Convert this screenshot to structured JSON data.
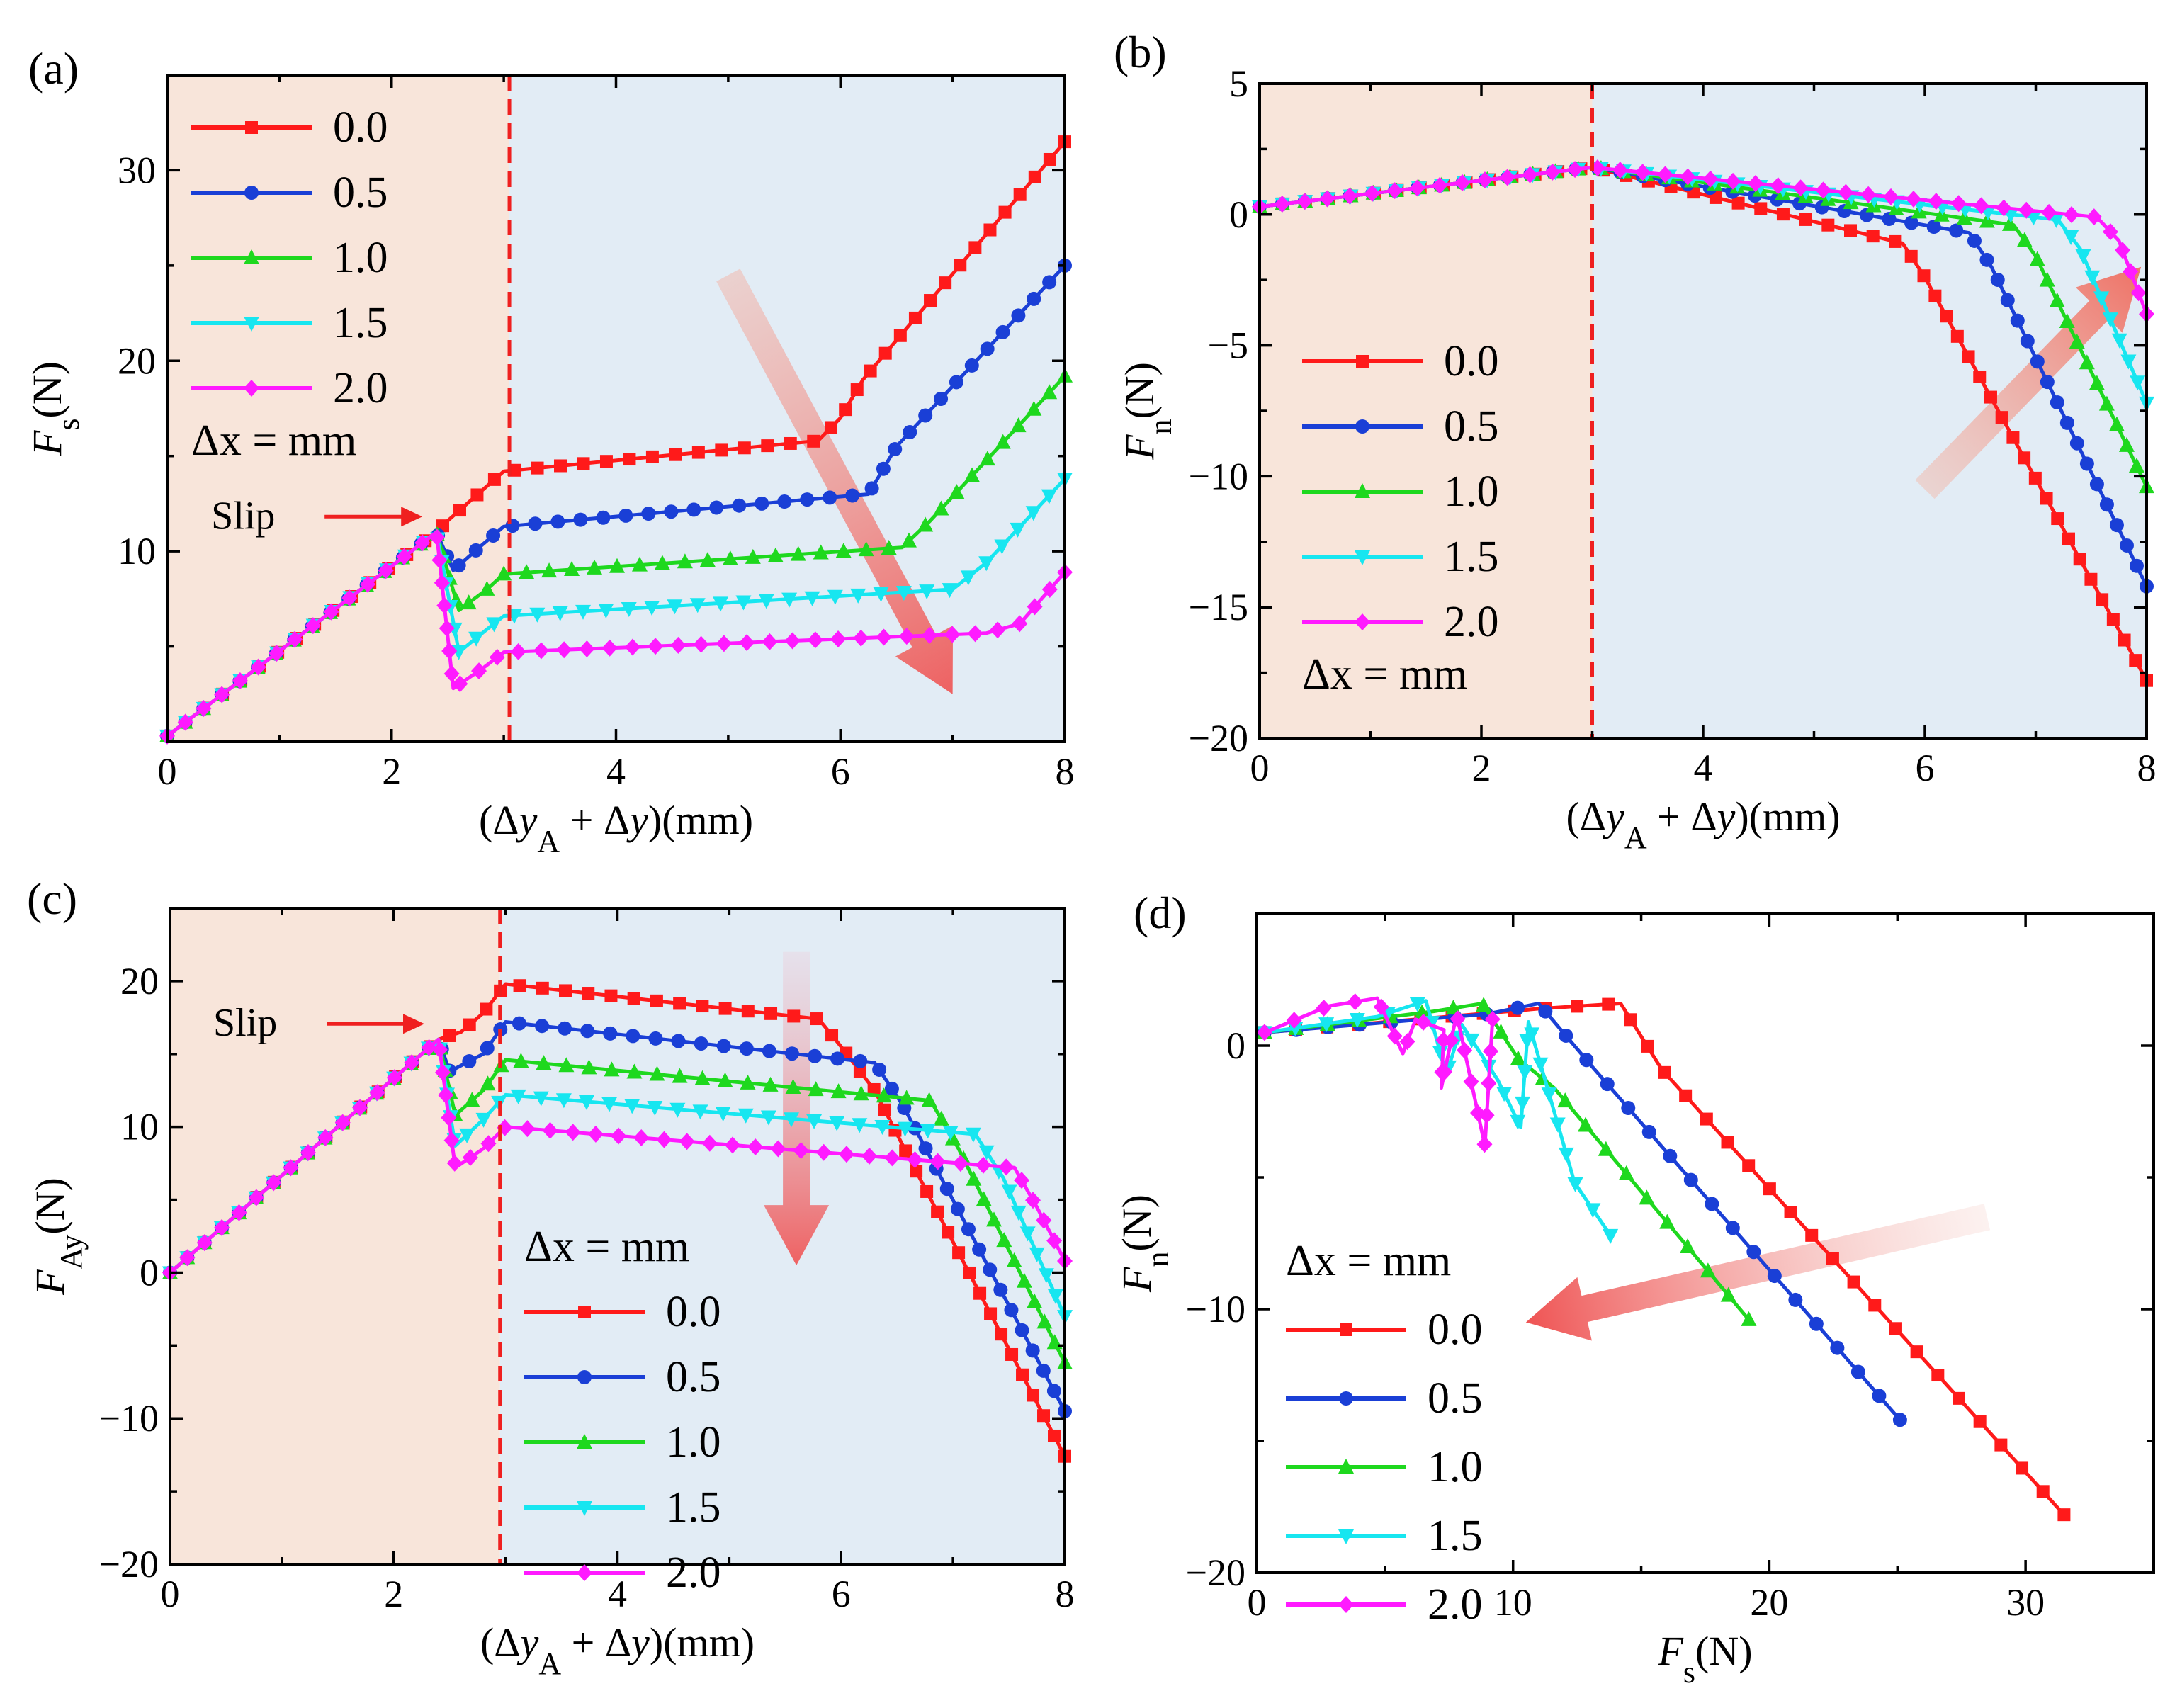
{
  "chart_data": [
    {
      "id": "a",
      "type": "line",
      "panel_label": "(a)",
      "xlabel": "(Δy_A + Δy)(mm)",
      "ylabel": "F_s(N)",
      "xlim": [
        0,
        8
      ],
      "ylim": [
        0,
        35
      ],
      "xticks": [
        0,
        2,
        4,
        6,
        8
      ],
      "yticks": [
        10,
        20,
        30
      ],
      "regions": [
        {
          "from": 0,
          "to": 3.05,
          "color": "#f8e5da"
        },
        {
          "from": 3.05,
          "to": 8,
          "color": "#e2ecf5"
        }
      ],
      "vline": 3.05,
      "legend_title": "Δx = mm",
      "legend_position": "top-left",
      "annotation": {
        "text": "Slip",
        "x": 2.35,
        "y": 11
      },
      "arrow": {
        "from": [
          5.0,
          24.5
        ],
        "to": [
          7.0,
          2.5
        ],
        "direction": "down-right"
      },
      "series": [
        {
          "name": "0.0",
          "color": "#ff1a1a",
          "marker": "square",
          "points": [
            [
              0,
              0.3
            ],
            [
              2.4,
              11
            ],
            [
              2.5,
              11.6
            ],
            [
              2.75,
              12.9
            ],
            [
              3.0,
              14.2
            ],
            [
              5.8,
              15.8
            ],
            [
              6.0,
              17
            ],
            [
              6.2,
              19
            ],
            [
              8,
              31.5
            ]
          ]
        },
        {
          "name": "0.5",
          "color": "#1a3fd6",
          "marker": "circle",
          "points": [
            [
              0,
              0.3
            ],
            [
              2.4,
              11
            ],
            [
              2.55,
              9
            ],
            [
              2.8,
              10.3
            ],
            [
              3.0,
              11.3
            ],
            [
              6.25,
              13
            ],
            [
              6.5,
              15.5
            ],
            [
              8,
              25
            ]
          ]
        },
        {
          "name": "1.0",
          "color": "#1ed81e",
          "marker": "triangle-up",
          "points": [
            [
              0,
              0.3
            ],
            [
              2.4,
              11
            ],
            [
              2.6,
              6.9
            ],
            [
              2.85,
              8.0
            ],
            [
              3.0,
              8.8
            ],
            [
              6.55,
              10.2
            ],
            [
              6.8,
              11.6
            ],
            [
              8,
              19.2
            ]
          ]
        },
        {
          "name": "1.5",
          "color": "#17e6f0",
          "marker": "triangle-down",
          "points": [
            [
              0,
              0.3
            ],
            [
              2.4,
              11
            ],
            [
              2.6,
              4.7
            ],
            [
              2.85,
              5.9
            ],
            [
              3.0,
              6.6
            ],
            [
              7.0,
              8.0
            ],
            [
              7.3,
              9.4
            ],
            [
              8,
              13.8
            ]
          ]
        },
        {
          "name": "2.0",
          "color": "#ff1aff",
          "marker": "diamond",
          "points": [
            [
              0,
              0.3
            ],
            [
              2.4,
              11
            ],
            [
              2.55,
              2.8
            ],
            [
              2.8,
              3.8
            ],
            [
              3.0,
              4.7
            ],
            [
              7.3,
              5.7
            ],
            [
              7.6,
              6.2
            ],
            [
              8,
              8.9
            ]
          ]
        }
      ]
    },
    {
      "id": "b",
      "type": "line",
      "panel_label": "(b)",
      "xlabel": "(Δy_A + Δy)(mm)",
      "ylabel": "F_n(N)",
      "xlim": [
        0,
        8
      ],
      "ylim": [
        -20,
        5
      ],
      "xticks": [
        0,
        2,
        4,
        6,
        8
      ],
      "yticks": [
        5,
        0,
        -5,
        -10,
        -15,
        -20
      ],
      "regions": [
        {
          "from": 0,
          "to": 3.0,
          "color": "#f8e5da"
        },
        {
          "from": 3.0,
          "to": 8,
          "color": "#e2ecf5"
        }
      ],
      "vline": 3.0,
      "legend_title": "Δx = mm",
      "legend_position": "bottom-left",
      "arrow": {
        "from": [
          6.0,
          -10.5
        ],
        "to": [
          7.95,
          -2.0
        ],
        "direction": "up-right"
      },
      "series": [
        {
          "name": "0.0",
          "color": "#ff1a1a",
          "marker": "square",
          "points": [
            [
              0,
              0.3
            ],
            [
              3.0,
              1.8
            ],
            [
              5.8,
              -1.1
            ],
            [
              6.0,
              -2.4
            ],
            [
              8,
              -17.8
            ]
          ]
        },
        {
          "name": "0.5",
          "color": "#1a3fd6",
          "marker": "circle",
          "points": [
            [
              0,
              0.3
            ],
            [
              3.0,
              1.8
            ],
            [
              6.4,
              -0.7
            ],
            [
              6.6,
              -2.0
            ],
            [
              8,
              -14.2
            ]
          ]
        },
        {
          "name": "1.0",
          "color": "#1ed81e",
          "marker": "triangle-up",
          "points": [
            [
              0,
              0.3
            ],
            [
              3.0,
              1.8
            ],
            [
              6.8,
              -0.4
            ],
            [
              7.0,
              -1.6
            ],
            [
              8,
              -10.4
            ]
          ]
        },
        {
          "name": "1.5",
          "color": "#17e6f0",
          "marker": "triangle-down",
          "points": [
            [
              0,
              0.3
            ],
            [
              3.0,
              1.8
            ],
            [
              7.2,
              -0.2
            ],
            [
              7.4,
              -1.3
            ],
            [
              8,
              -7.2
            ]
          ]
        },
        {
          "name": "2.0",
          "color": "#ff1aff",
          "marker": "diamond",
          "points": [
            [
              0,
              0.3
            ],
            [
              3.0,
              1.8
            ],
            [
              7.55,
              -0.1
            ],
            [
              7.75,
              -1.0
            ],
            [
              8,
              -3.8
            ]
          ]
        }
      ]
    },
    {
      "id": "c",
      "type": "line",
      "panel_label": "(c)",
      "xlabel": "(Δy_A + Δy)(mm)",
      "ylabel": "F_Ay(N)",
      "xlim": [
        0,
        8
      ],
      "ylim": [
        -20,
        25
      ],
      "xticks": [
        0,
        2,
        4,
        6,
        8
      ],
      "yticks": [
        20,
        10,
        0,
        -10,
        -20
      ],
      "regions": [
        {
          "from": 0,
          "to": 2.95,
          "color": "#f8e5da"
        },
        {
          "from": 2.95,
          "to": 8,
          "color": "#e2ecf5"
        }
      ],
      "vline": 2.95,
      "legend_title": "Δx = mm",
      "legend_position": "center-right",
      "annotation": {
        "text": "Slip",
        "x": 2.35,
        "y": 16
      },
      "arrow": {
        "from": [
          5.6,
          22
        ],
        "to": [
          5.6,
          0.5
        ],
        "direction": "down"
      },
      "series": [
        {
          "name": "0.0",
          "color": "#ff1a1a",
          "marker": "square",
          "points": [
            [
              0,
              0
            ],
            [
              2.4,
              16
            ],
            [
              2.6,
              16.5
            ],
            [
              2.8,
              17.8
            ],
            [
              3.0,
              19.8
            ],
            [
              5.8,
              17.4
            ],
            [
              6.0,
              15.5
            ],
            [
              6.3,
              12.5
            ],
            [
              6.6,
              8
            ],
            [
              8,
              -12.6
            ]
          ]
        },
        {
          "name": "0.5",
          "color": "#1a3fd6",
          "marker": "circle",
          "points": [
            [
              0,
              0
            ],
            [
              2.4,
              16
            ],
            [
              2.5,
              13.8
            ],
            [
              2.8,
              15.0
            ],
            [
              3.0,
              17.2
            ],
            [
              6.3,
              14.4
            ],
            [
              6.55,
              11.5
            ],
            [
              8,
              -9.5
            ]
          ]
        },
        {
          "name": "1.0",
          "color": "#1ed81e",
          "marker": "triangle-up",
          "points": [
            [
              0,
              0
            ],
            [
              2.4,
              16
            ],
            [
              2.55,
              10.8
            ],
            [
              2.8,
              12.5
            ],
            [
              3.0,
              14.6
            ],
            [
              6.8,
              11.8
            ],
            [
              7.05,
              8.5
            ],
            [
              8,
              -6.2
            ]
          ]
        },
        {
          "name": "1.5",
          "color": "#17e6f0",
          "marker": "triangle-down",
          "points": [
            [
              0,
              0
            ],
            [
              2.4,
              16
            ],
            [
              2.55,
              8.7
            ],
            [
              2.8,
              10.5
            ],
            [
              3.0,
              12.2
            ],
            [
              7.2,
              9.5
            ],
            [
              7.45,
              6.5
            ],
            [
              8,
              -3.0
            ]
          ]
        },
        {
          "name": "2.0",
          "color": "#ff1aff",
          "marker": "diamond",
          "points": [
            [
              0,
              0
            ],
            [
              2.4,
              16
            ],
            [
              2.55,
              7.2
            ],
            [
              2.8,
              8.5
            ],
            [
              3.0,
              10.0
            ],
            [
              7.55,
              7.2
            ],
            [
              7.75,
              4.5
            ],
            [
              8,
              0.8
            ]
          ]
        }
      ]
    },
    {
      "id": "d",
      "type": "line",
      "panel_label": "(d)",
      "xlabel": "F_s(N)",
      "ylabel": "F_n(N)",
      "xlim": [
        0,
        35
      ],
      "ylim": [
        -20,
        5
      ],
      "xticks": [
        0,
        10,
        20,
        30
      ],
      "yticks": [
        0,
        -10,
        -20
      ],
      "legend_title": "Δx = mm",
      "legend_position": "bottom-left",
      "arrow": {
        "from": [
          28.5,
          -6.5
        ],
        "to": [
          10.5,
          -10.5
        ],
        "direction": "left"
      },
      "series": [
        {
          "name": "0.0",
          "color": "#ff1a1a",
          "marker": "square",
          "points": [
            [
              0.3,
              0.5
            ],
            [
              11,
              1.4
            ],
            [
              14.2,
              1.6
            ],
            [
              15.8,
              -0.9
            ],
            [
              31.5,
              -17.8
            ]
          ]
        },
        {
          "name": "0.5",
          "color": "#1a3fd6",
          "marker": "circle",
          "points": [
            [
              0.3,
              0.5
            ],
            [
              9,
              1.2
            ],
            [
              11,
              1.6
            ],
            [
              13,
              -0.7
            ],
            [
              25.1,
              -14.2
            ]
          ]
        },
        {
          "name": "1.0",
          "color": "#1ed81e",
          "marker": "triangle-up",
          "points": [
            [
              0.3,
              0.5
            ],
            [
              6.9,
              1.3
            ],
            [
              8.8,
              1.6
            ],
            [
              10.2,
              -0.5
            ],
            [
              11.6,
              -1.6
            ],
            [
              19.2,
              -10.4
            ]
          ]
        },
        {
          "name": "1.5",
          "color": "#17e6f0",
          "marker": "triangle-down",
          "points": [
            [
              0.3,
              0.5
            ],
            [
              4.7,
              1.1
            ],
            [
              6.6,
              1.7
            ],
            [
              7.4,
              -1.1
            ],
            [
              8.0,
              0.8
            ],
            [
              9.4,
              -1.3
            ],
            [
              10.3,
              -3.1
            ],
            [
              10.6,
              0.9
            ],
            [
              12.4,
              -5.2
            ],
            [
              13.8,
              -7.2
            ]
          ]
        },
        {
          "name": "2.0",
          "color": "#ff1aff",
          "marker": "diamond",
          "points": [
            [
              0.3,
              0.5
            ],
            [
              2.8,
              1.5
            ],
            [
              4.7,
              1.8
            ],
            [
              5.7,
              -0.3
            ],
            [
              6.2,
              1.0
            ],
            [
              7.3,
              0.6
            ],
            [
              7.2,
              -1.6
            ],
            [
              7.8,
              1.2
            ],
            [
              8.9,
              -3.8
            ],
            [
              9.2,
              1.0
            ]
          ]
        }
      ]
    }
  ]
}
